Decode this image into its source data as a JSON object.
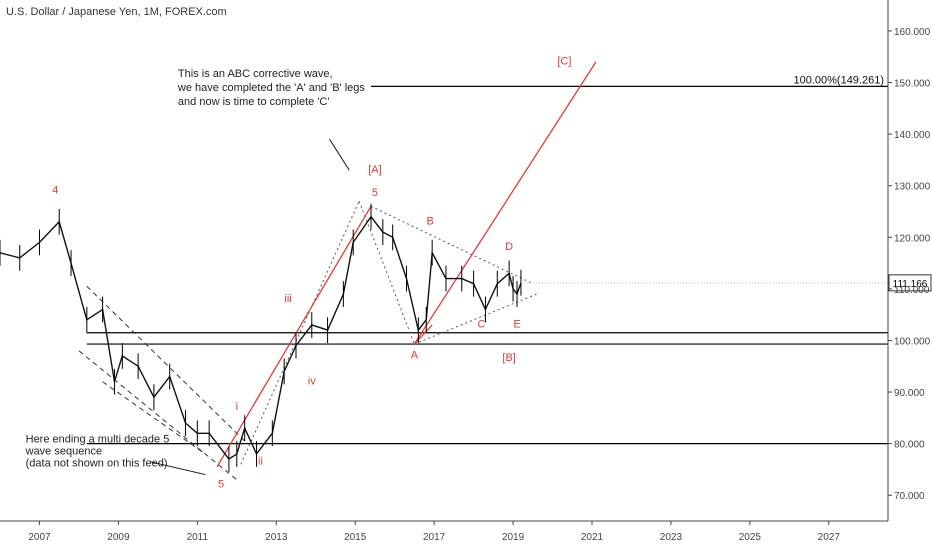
{
  "chart_data": {
    "type": "candlestick",
    "title": "U.S. Dollar / Japanese Yen, 1M, FOREX.com",
    "xlabel": "",
    "ylabel": "",
    "x_ticks": [
      "2007",
      "2009",
      "2011",
      "2013",
      "2015",
      "2017",
      "2019",
      "2021",
      "2023",
      "2025",
      "2027"
    ],
    "y_ticks": [
      "70.000",
      "80.000",
      "90.000",
      "100.000",
      "110.000",
      "120.000",
      "130.000",
      "140.000",
      "150.000",
      "160.000"
    ],
    "xlim": [
      2006.0,
      2028.5
    ],
    "ylim": [
      65,
      166
    ],
    "last_price": "111.166",
    "price_series": [
      [
        2006.0,
        117
      ],
      [
        2006.5,
        116
      ],
      [
        2007.0,
        119
      ],
      [
        2007.5,
        123
      ],
      [
        2007.8,
        115
      ],
      [
        2008.2,
        104
      ],
      [
        2008.6,
        106
      ],
      [
        2008.9,
        92
      ],
      [
        2009.1,
        97
      ],
      [
        2009.5,
        95
      ],
      [
        2009.9,
        89
      ],
      [
        2010.3,
        93
      ],
      [
        2010.7,
        84
      ],
      [
        2011.0,
        82
      ],
      [
        2011.3,
        82
      ],
      [
        2011.8,
        77
      ],
      [
        2012.0,
        78
      ],
      [
        2012.2,
        83
      ],
      [
        2012.5,
        78
      ],
      [
        2012.9,
        82
      ],
      [
        2013.2,
        94
      ],
      [
        2013.5,
        99
      ],
      [
        2013.9,
        103
      ],
      [
        2014.3,
        102
      ],
      [
        2014.7,
        109
      ],
      [
        2014.95,
        119
      ],
      [
        2015.4,
        124
      ],
      [
        2015.7,
        121
      ],
      [
        2015.95,
        120
      ],
      [
        2016.3,
        112
      ],
      [
        2016.6,
        102
      ],
      [
        2016.8,
        104
      ],
      [
        2016.95,
        117
      ],
      [
        2017.3,
        112
      ],
      [
        2017.7,
        112
      ],
      [
        2018.0,
        111
      ],
      [
        2018.3,
        106
      ],
      [
        2018.6,
        111
      ],
      [
        2018.9,
        113
      ],
      [
        2019.0,
        110
      ],
      [
        2019.1,
        109
      ],
      [
        2019.2,
        111.2
      ]
    ],
    "horizontal_levels": [
      {
        "y": 149.261,
        "label": "100.00%(149.261)"
      },
      {
        "y": 101.5
      },
      {
        "y": 99.3
      },
      {
        "y": 80.0
      }
    ],
    "wave_labels": [
      {
        "text": "4",
        "x": 2007.4,
        "y": 128.5
      },
      {
        "text": "5",
        "x": 2011.6,
        "y": 71.5
      },
      {
        "text": "i",
        "x": 2012.0,
        "y": 86.5
      },
      {
        "text": "ii",
        "x": 2012.6,
        "y": 76.0
      },
      {
        "text": "iii",
        "x": 2013.3,
        "y": 107.5
      },
      {
        "text": "iv",
        "x": 2013.9,
        "y": 91.5
      },
      {
        "text": "[A]",
        "x": 2015.5,
        "y": 132.5
      },
      {
        "text": "5",
        "x": 2015.5,
        "y": 128.0
      },
      {
        "text": "B",
        "x": 2016.9,
        "y": 122.5
      },
      {
        "text": "A",
        "x": 2016.5,
        "y": 96.5
      },
      {
        "text": "C",
        "x": 2018.2,
        "y": 102.5
      },
      {
        "text": "D",
        "x": 2018.9,
        "y": 117.5
      },
      {
        "text": "E",
        "x": 2019.1,
        "y": 102.5
      },
      {
        "text": "[B]",
        "x": 2018.9,
        "y": 96.0
      },
      {
        "text": "[C]",
        "x": 2020.3,
        "y": 153.5
      }
    ],
    "annotations": [
      {
        "lines": [
          "This is an ABC corrective wave,",
          "we have completed the 'A' and 'B' legs",
          "and now is time to complete 'C'"
        ]
      },
      {
        "lines": [
          "Here ending a multi decade 5",
          "wave sequence",
          "(data not shown on this feed)"
        ]
      }
    ],
    "grid": false,
    "colors": {
      "up": "#000000",
      "down": "#000000",
      "wave": "#e53935",
      "level": "#000000",
      "dashed": "#333333"
    }
  }
}
